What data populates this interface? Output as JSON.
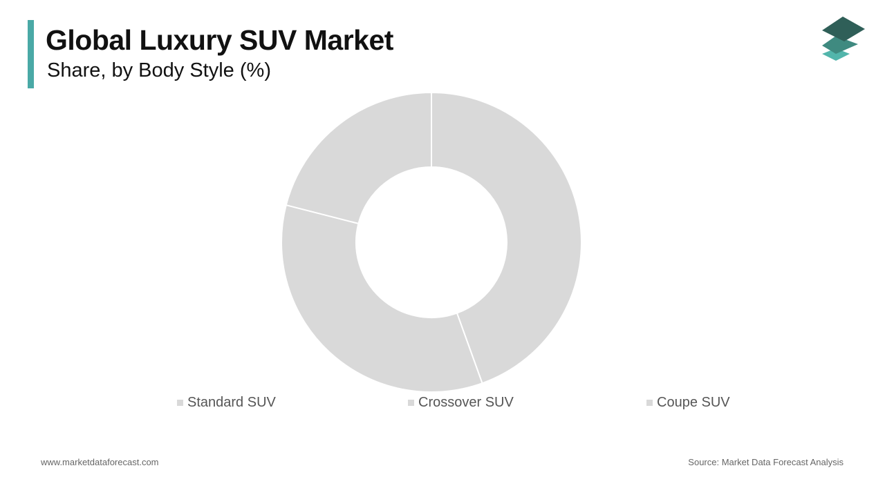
{
  "header": {
    "title": "Global Luxury SUV Market",
    "subtitle": "Share, by Body Style (%)"
  },
  "logo": {
    "icon": "stacked-layers-logo-icon",
    "colors": [
      "#2f5f58",
      "#3f8a80",
      "#52b5ab"
    ]
  },
  "chart_data": {
    "type": "pie",
    "donut": true,
    "categories": [
      "Standard SUV",
      "Crossover SUV",
      "Coupe SUV"
    ],
    "values": [
      44.5,
      34.5,
      21
    ],
    "colors": [
      "#d9d9d9",
      "#d9d9d9",
      "#d9d9d9"
    ],
    "legend": "bottom",
    "title": "Global Luxury SUV Market",
    "subtitle": "Share, by Body Style (%)"
  },
  "footer": {
    "website": "www.marketdataforecast.com",
    "source": "Source: Market Data Forecast Analysis"
  }
}
